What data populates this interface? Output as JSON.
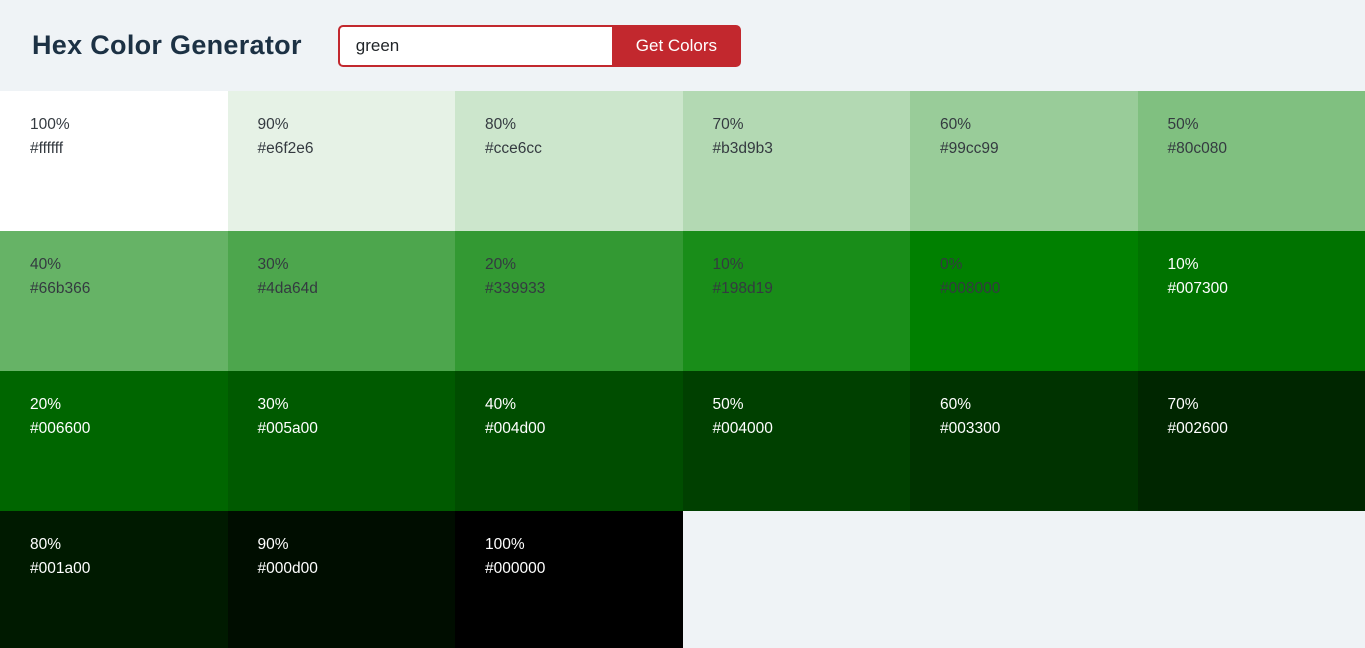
{
  "header": {
    "title": "Hex Color Generator",
    "input_value": "green",
    "button_label": "Get Colors"
  },
  "colors": {
    "header_bg": "#eff3f6",
    "page_bg": "#eff3f6",
    "title_color": "#1c3144",
    "accent_red": "#c2282e",
    "dark_swatch_text": "#343a40",
    "light_swatch_text": "#ffffff"
  },
  "swatches": [
    {
      "percent": "100%",
      "hex": "#ffffff",
      "text": "dark"
    },
    {
      "percent": "90%",
      "hex": "#e6f2e6",
      "text": "dark"
    },
    {
      "percent": "80%",
      "hex": "#cce6cc",
      "text": "dark"
    },
    {
      "percent": "70%",
      "hex": "#b3d9b3",
      "text": "dark"
    },
    {
      "percent": "60%",
      "hex": "#99cc99",
      "text": "dark"
    },
    {
      "percent": "50%",
      "hex": "#80c080",
      "text": "dark"
    },
    {
      "percent": "40%",
      "hex": "#66b366",
      "text": "dark"
    },
    {
      "percent": "30%",
      "hex": "#4da64d",
      "text": "dark"
    },
    {
      "percent": "20%",
      "hex": "#339933",
      "text": "dark"
    },
    {
      "percent": "10%",
      "hex": "#198d19",
      "text": "dark"
    },
    {
      "percent": "0%",
      "hex": "#008000",
      "text": "dark"
    },
    {
      "percent": "10%",
      "hex": "#007300",
      "text": "light"
    },
    {
      "percent": "20%",
      "hex": "#006600",
      "text": "light"
    },
    {
      "percent": "30%",
      "hex": "#005a00",
      "text": "light"
    },
    {
      "percent": "40%",
      "hex": "#004d00",
      "text": "light"
    },
    {
      "percent": "50%",
      "hex": "#004000",
      "text": "light"
    },
    {
      "percent": "60%",
      "hex": "#003300",
      "text": "light"
    },
    {
      "percent": "70%",
      "hex": "#002600",
      "text": "light"
    },
    {
      "percent": "80%",
      "hex": "#001a00",
      "text": "light"
    },
    {
      "percent": "90%",
      "hex": "#000d00",
      "text": "light"
    },
    {
      "percent": "100%",
      "hex": "#000000",
      "text": "light"
    }
  ]
}
